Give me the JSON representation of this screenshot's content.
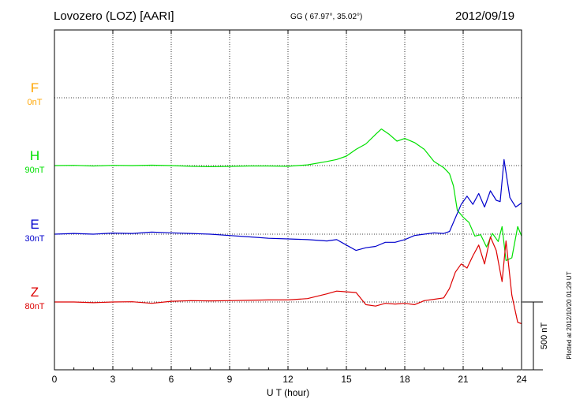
{
  "header": {
    "station": "Lovozero (LOZ)  [AARI]",
    "coords": "GG ( 67.97°,  35.02°)",
    "date": "2012/09/19"
  },
  "footer": {
    "plotted": "Plotted at 2012/10/20 01:29 UT",
    "scale_label": "500 nT"
  },
  "chart_data": {
    "type": "line",
    "xlabel": "U T (hour)",
    "xlim": [
      0,
      24
    ],
    "xticks": [
      0,
      3,
      6,
      9,
      12,
      15,
      18,
      21,
      24
    ],
    "scale_bar_nT": 500,
    "series": [
      {
        "name": "F",
        "offset_label": "0nT",
        "color": "#ffa500",
        "values_nT": [],
        "x": [],
        "y": []
      },
      {
        "name": "H",
        "offset_label": "90nT",
        "color": "#00e000",
        "x": [
          0,
          1,
          2,
          3,
          4,
          5,
          6,
          7,
          8,
          9,
          10,
          11,
          12,
          13,
          14,
          14.5,
          15,
          15.5,
          16,
          16.5,
          16.8,
          17.2,
          17.6,
          18,
          18.5,
          19,
          19.5,
          20,
          20.3,
          20.5,
          20.7,
          21,
          21.3,
          21.6,
          21.9,
          22.2,
          22.5,
          22.8,
          23,
          23.2,
          23.5,
          23.8,
          24
        ],
        "y": [
          0,
          2,
          -3,
          2,
          0,
          3,
          0,
          -5,
          -8,
          -6,
          -3,
          -3,
          -5,
          5,
          30,
          45,
          70,
          120,
          160,
          230,
          270,
          230,
          180,
          200,
          170,
          120,
          30,
          -15,
          -60,
          -150,
          -330,
          -380,
          -420,
          -520,
          -510,
          -600,
          -500,
          -560,
          -450,
          -700,
          -680,
          -450,
          -520
        ]
      },
      {
        "name": "E",
        "offset_label": "30nT",
        "color": "#0000cc",
        "x": [
          0,
          1,
          2,
          3,
          4,
          5,
          6,
          7,
          8,
          9,
          10,
          11,
          12,
          13,
          14,
          14.5,
          15,
          15.5,
          16,
          16.5,
          17,
          17.5,
          18,
          18.5,
          19,
          19.5,
          20,
          20.3,
          20.6,
          20.9,
          21.2,
          21.5,
          21.8,
          22.1,
          22.4,
          22.7,
          22.9,
          23.1,
          23.4,
          23.7,
          24
        ],
        "y": [
          0,
          5,
          0,
          8,
          5,
          15,
          10,
          5,
          0,
          -10,
          -20,
          -30,
          -35,
          -40,
          -50,
          -40,
          -80,
          -120,
          -100,
          -90,
          -60,
          -60,
          -40,
          -10,
          0,
          10,
          5,
          20,
          120,
          220,
          280,
          220,
          300,
          200,
          320,
          250,
          240,
          550,
          270,
          200,
          230
        ]
      },
      {
        "name": "Z",
        "offset_label": "80nT",
        "color": "#dd0000",
        "x": [
          0,
          1,
          2,
          3,
          4,
          5,
          6,
          7,
          8,
          9,
          10,
          11,
          12,
          13,
          14,
          14.5,
          15,
          15.5,
          16,
          16.5,
          17,
          17.5,
          18,
          18.5,
          19,
          19.5,
          20,
          20.3,
          20.6,
          20.9,
          21.2,
          21.5,
          21.8,
          22.1,
          22.4,
          22.7,
          23,
          23.2,
          23.5,
          23.8,
          24
        ],
        "y": [
          0,
          0,
          -5,
          0,
          2,
          -10,
          5,
          10,
          8,
          10,
          12,
          15,
          15,
          25,
          60,
          80,
          75,
          70,
          -20,
          -30,
          -10,
          -15,
          -10,
          -20,
          10,
          20,
          30,
          100,
          220,
          280,
          250,
          340,
          420,
          280,
          480,
          380,
          150,
          450,
          50,
          -150,
          -160
        ]
      }
    ]
  }
}
